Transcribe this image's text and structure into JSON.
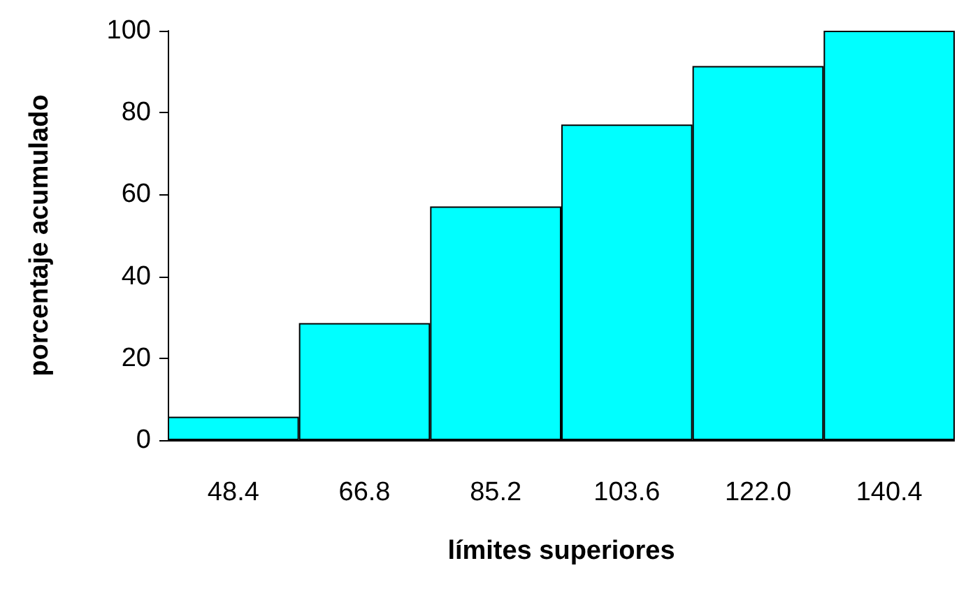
{
  "chart_data": {
    "type": "bar",
    "xlabel": "límites superiores",
    "ylabel": "porcentaje acumulado",
    "categories": [
      "48.4",
      "66.8",
      "85.2",
      "103.6",
      "122.0",
      "140.4"
    ],
    "values": [
      5.7,
      28.6,
      57.1,
      77.1,
      91.4,
      100
    ],
    "color": "#00ffff",
    "ylim": [
      0,
      100
    ],
    "yticks": [
      0,
      20,
      40,
      60,
      80,
      100
    ],
    "grid": false
  }
}
